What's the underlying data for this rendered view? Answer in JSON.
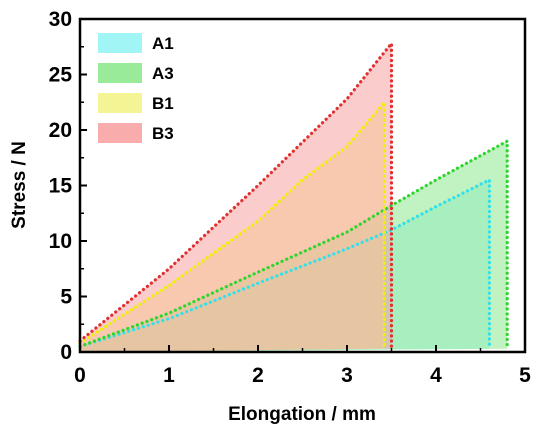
{
  "chart_data": {
    "type": "area",
    "xlabel": "Elongation / mm",
    "ylabel": "Stress / N",
    "xlim": [
      0,
      5
    ],
    "ylim": [
      0,
      30
    ],
    "xticks": [
      "0",
      "1",
      "2",
      "3",
      "4",
      "5"
    ],
    "yticks": [
      "0",
      "5",
      "10",
      "15",
      "20",
      "25",
      "30"
    ],
    "grid": false,
    "legend_position": "top-left",
    "series": [
      {
        "name": "A1",
        "color": "#33e0ea",
        "fill": "#98f4f4",
        "points": [
          [
            0,
            0.5
          ],
          [
            1,
            3.0
          ],
          [
            2,
            6.2
          ],
          [
            3,
            9.3
          ],
          [
            3.5,
            11.0
          ],
          [
            4,
            13.1
          ],
          [
            4.6,
            15.5
          ],
          [
            4.6,
            0.3
          ]
        ]
      },
      {
        "name": "A3",
        "color": "#2ed52e",
        "fill": "#8ee88e",
        "points": [
          [
            0,
            0.5
          ],
          [
            1,
            3.5
          ],
          [
            2,
            7.2
          ],
          [
            3,
            10.8
          ],
          [
            3.5,
            13.2
          ],
          [
            4,
            15.5
          ],
          [
            4.8,
            19.0
          ],
          [
            4.8,
            0.3
          ]
        ]
      },
      {
        "name": "B1",
        "color": "#f0f000",
        "fill": "#f3f38a",
        "points": [
          [
            0,
            0.8
          ],
          [
            1,
            6.0
          ],
          [
            2,
            11.8
          ],
          [
            2.5,
            15.5
          ],
          [
            3,
            18.5
          ],
          [
            3.42,
            22.5
          ],
          [
            3.42,
            0.3
          ]
        ]
      },
      {
        "name": "B3",
        "color": "#e03030",
        "fill": "#f7a3a3",
        "points": [
          [
            0,
            1.0
          ],
          [
            1,
            7.5
          ],
          [
            2,
            15.0
          ],
          [
            3,
            22.8
          ],
          [
            3.5,
            27.8
          ],
          [
            3.5,
            0.3
          ]
        ]
      }
    ]
  }
}
